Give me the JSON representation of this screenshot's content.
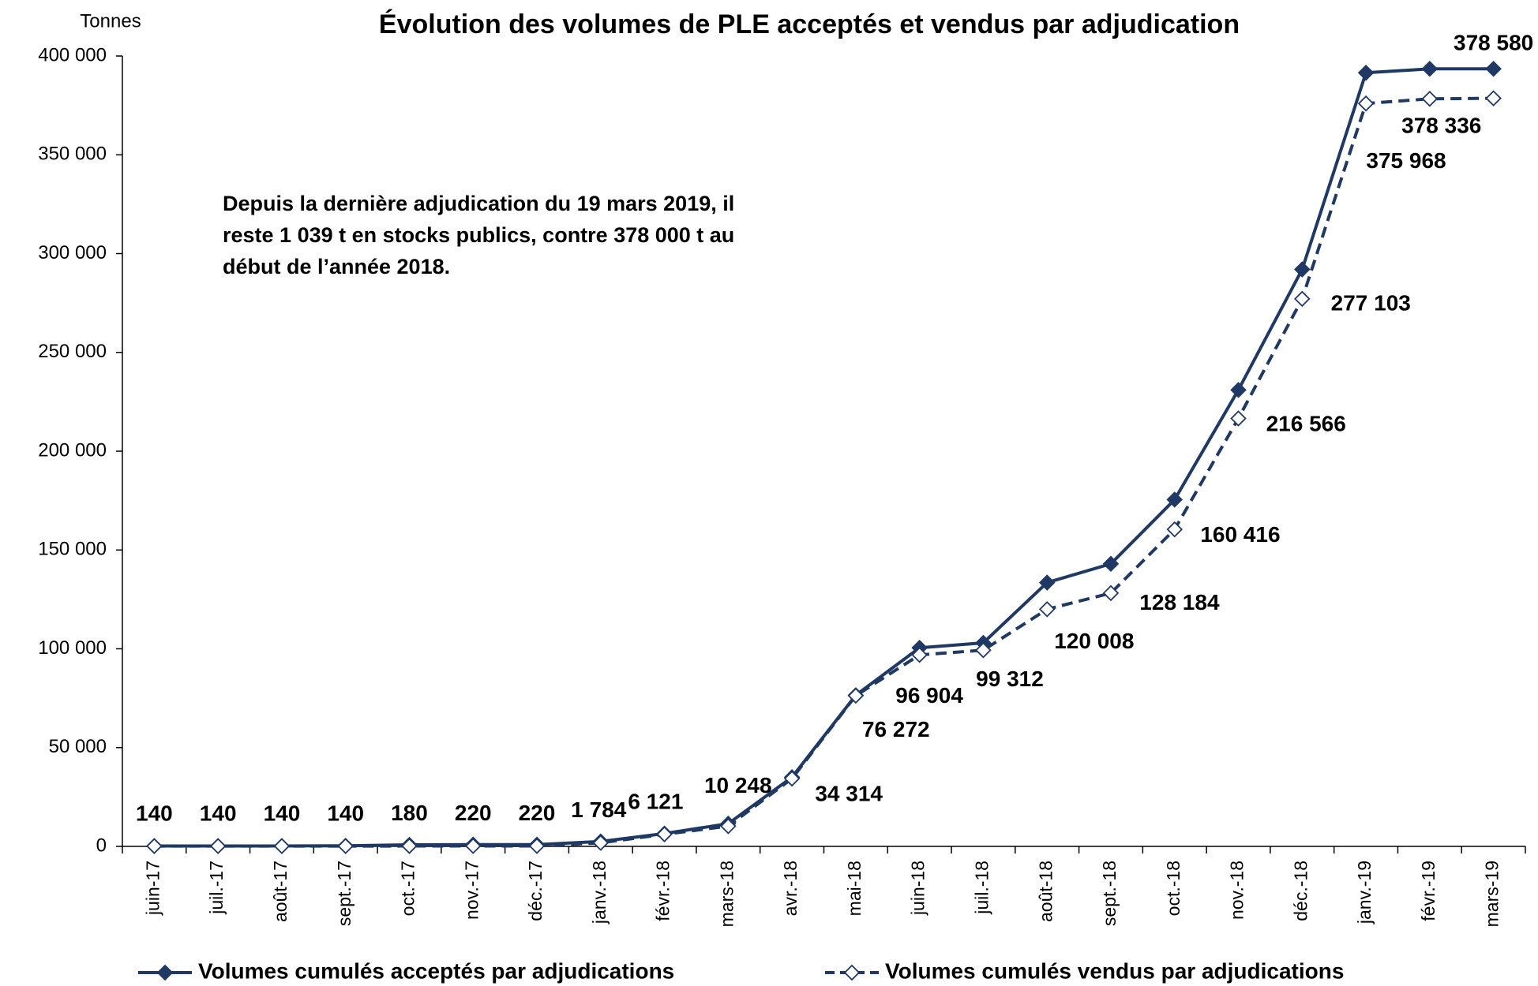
{
  "chart_data": {
    "type": "line",
    "title": "Évolution des volumes de PLE acceptés et vendus par adjudication",
    "y_axis_label": "Tonnes",
    "annotation": [
      "Depuis la dernière adjudication du 19 mars 2019, il",
      "reste 1 039 t en stocks publics, contre 378 000 t au",
      "début de l’année 2018."
    ],
    "categories": [
      "juin-17",
      "juil.-17",
      "août-17",
      "sept.-17",
      "oct.-17",
      "nov.-17",
      "déc.-17",
      "janv.-18",
      "févr.-18",
      "mars-18",
      "avr.-18",
      "mai-18",
      "juin-18",
      "juil.-18",
      "août-18",
      "sept.-18",
      "oct.-18",
      "nov.-18",
      "déc.-18",
      "janv.-19",
      "févr.-19",
      "mars-19"
    ],
    "series": [
      {
        "name": "Volumes cumulés acceptés par adjudications",
        "color": "#1f3864",
        "dash": false,
        "values": [
          200,
          200,
          200,
          300,
          800,
          900,
          900,
          2500,
          6500,
          11500,
          35000,
          76500,
          100500,
          103000,
          133500,
          143000,
          175500,
          231000,
          292000,
          391500,
          393500,
          393500
        ]
      },
      {
        "name": "Volumes cumulés vendus par adjudications",
        "color": "#1f3864",
        "dash": true,
        "values": [
          140,
          140,
          140,
          140,
          180,
          220,
          220,
          1784,
          6121,
          10248,
          34314,
          76272,
          96904,
          99312,
          120008,
          128184,
          160416,
          216566,
          277103,
          375968,
          378336,
          378580
        ],
        "value_labels": [
          "140",
          "140",
          "140",
          "140",
          "180",
          "220",
          "220",
          "1 784",
          "6 121",
          "10 248",
          "34 314",
          "76 272",
          "96 904",
          "99 312",
          "120 008",
          "128 184",
          "160 416",
          "216 566",
          "277 103",
          "375 968",
          "378 336",
          "378 580"
        ]
      }
    ],
    "ylim": [
      0,
      400000
    ],
    "yticks": [
      0,
      {
        "value": 50000,
        "label": "50 000"
      },
      {
        "value": 100000,
        "label": "100 000"
      },
      {
        "value": 150000,
        "label": "150 000"
      },
      {
        "value": 200000,
        "label": "200 000"
      },
      {
        "value": 250000,
        "label": "250 000"
      },
      {
        "value": 300000,
        "label": "300 000"
      },
      {
        "value": 350000,
        "label": "350 000"
      },
      {
        "value": 400000,
        "label": "400 000"
      }
    ],
    "grid": false,
    "legend": "bottom"
  }
}
